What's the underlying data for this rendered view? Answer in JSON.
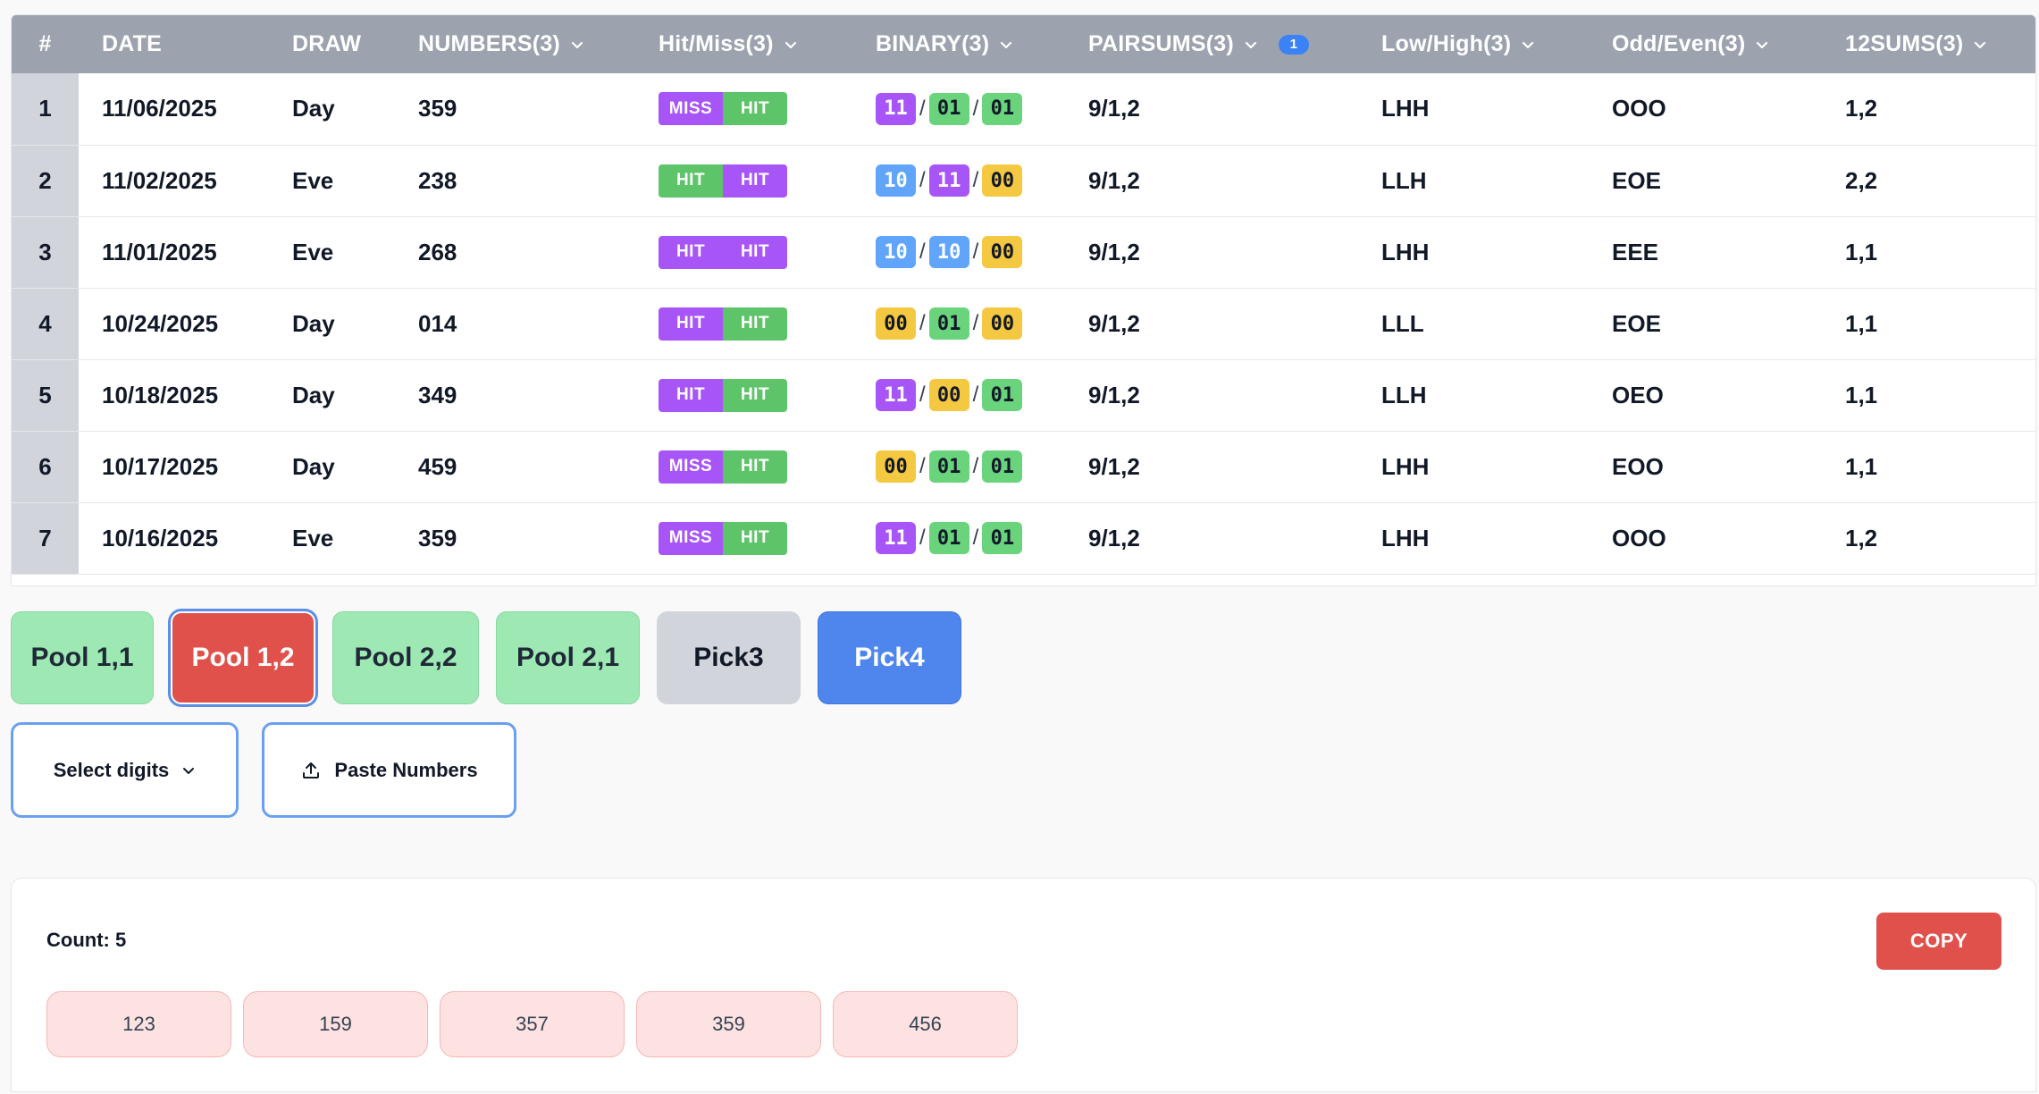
{
  "table": {
    "headers": {
      "index": "#",
      "date": "DATE",
      "draw": "DRAW",
      "numbers": "NUMBERS(3)",
      "hitmiss": "Hit/Miss(3)",
      "binary": "BINARY(3)",
      "pairsums": "PAIRSUMS(3)",
      "pairsums_badge": "1",
      "lowhigh": "Low/High(3)",
      "oddeven": "Odd/Even(3)",
      "sums12": "12SUMS(3)"
    },
    "rows": [
      {
        "idx": "1",
        "date": "11/06/2025",
        "draw": "Day",
        "numbers": "359",
        "hm": [
          "MISS",
          "HIT"
        ],
        "hm_colors": [
          "#a855f7",
          "#5ec46a"
        ],
        "binary": [
          "11",
          "01",
          "01"
        ],
        "binary_colors": [
          "purple",
          "green",
          "green"
        ],
        "pairsums": "9/1,2",
        "lowhigh": "LHH",
        "oddeven": "OOO",
        "sums12": "1,2"
      },
      {
        "idx": "2",
        "date": "11/02/2025",
        "draw": "Eve",
        "numbers": "238",
        "hm": [
          "HIT",
          "HIT"
        ],
        "hm_colors": [
          "#5ec46a",
          "#a855f7"
        ],
        "binary": [
          "10",
          "11",
          "00"
        ],
        "binary_colors": [
          "blue",
          "purple",
          "yellow"
        ],
        "pairsums": "9/1,2",
        "lowhigh": "LLH",
        "oddeven": "EOE",
        "sums12": "2,2"
      },
      {
        "idx": "3",
        "date": "11/01/2025",
        "draw": "Eve",
        "numbers": "268",
        "hm": [
          "HIT",
          "HIT"
        ],
        "hm_colors": [
          "#a855f7",
          "#a855f7"
        ],
        "binary": [
          "10",
          "10",
          "00"
        ],
        "binary_colors": [
          "blue",
          "blue",
          "yellow"
        ],
        "pairsums": "9/1,2",
        "lowhigh": "LHH",
        "oddeven": "EEE",
        "sums12": "1,1"
      },
      {
        "idx": "4",
        "date": "10/24/2025",
        "draw": "Day",
        "numbers": "014",
        "hm": [
          "HIT",
          "HIT"
        ],
        "hm_colors": [
          "#a855f7",
          "#5ec46a"
        ],
        "binary": [
          "00",
          "01",
          "00"
        ],
        "binary_colors": [
          "yellow",
          "green",
          "yellow"
        ],
        "pairsums": "9/1,2",
        "lowhigh": "LLL",
        "oddeven": "EOE",
        "sums12": "1,1"
      },
      {
        "idx": "5",
        "date": "10/18/2025",
        "draw": "Day",
        "numbers": "349",
        "hm": [
          "HIT",
          "HIT"
        ],
        "hm_colors": [
          "#a855f7",
          "#5ec46a"
        ],
        "binary": [
          "11",
          "00",
          "01"
        ],
        "binary_colors": [
          "purple",
          "yellow",
          "green"
        ],
        "pairsums": "9/1,2",
        "lowhigh": "LLH",
        "oddeven": "OEO",
        "sums12": "1,1"
      },
      {
        "idx": "6",
        "date": "10/17/2025",
        "draw": "Day",
        "numbers": "459",
        "hm": [
          "MISS",
          "HIT"
        ],
        "hm_colors": [
          "#a855f7",
          "#5ec46a"
        ],
        "binary": [
          "00",
          "01",
          "01"
        ],
        "binary_colors": [
          "yellow",
          "green",
          "green"
        ],
        "pairsums": "9/1,2",
        "lowhigh": "LHH",
        "oddeven": "EOO",
        "sums12": "1,1"
      },
      {
        "idx": "7",
        "date": "10/16/2025",
        "draw": "Eve",
        "numbers": "359",
        "hm": [
          "MISS",
          "HIT"
        ],
        "hm_colors": [
          "#a855f7",
          "#5ec46a"
        ],
        "binary": [
          "11",
          "01",
          "01"
        ],
        "binary_colors": [
          "purple",
          "green",
          "green"
        ],
        "pairsums": "9/1,2",
        "lowhigh": "LHH",
        "oddeven": "OOO",
        "sums12": "1,2"
      }
    ]
  },
  "chip_colors": {
    "purple": {
      "bg": "#a855f7",
      "fg": "#ffffff"
    },
    "green": {
      "bg": "#6ad47d",
      "fg": "#111827"
    },
    "blue": {
      "bg": "#60a5fa",
      "fg": "#ffffff"
    },
    "yellow": {
      "bg": "#f5c842",
      "fg": "#111827"
    }
  },
  "pools": {
    "pool11": "Pool 1,1",
    "pool12": "Pool 1,2",
    "pool22": "Pool 2,2",
    "pool21": "Pool 2,1",
    "pick3": "Pick3",
    "pick4": "Pick4",
    "selected": "pool12"
  },
  "controls": {
    "select_digits": "Select digits",
    "paste_numbers": "Paste Numbers"
  },
  "results": {
    "count_label": "Count: 5",
    "copy_label": "COPY",
    "numbers": [
      "123",
      "159",
      "357",
      "359",
      "456"
    ]
  },
  "icons": {
    "header_sort": "chevron-down-icon",
    "select_caret": "chevron-down-icon",
    "paste": "upload-icon"
  }
}
